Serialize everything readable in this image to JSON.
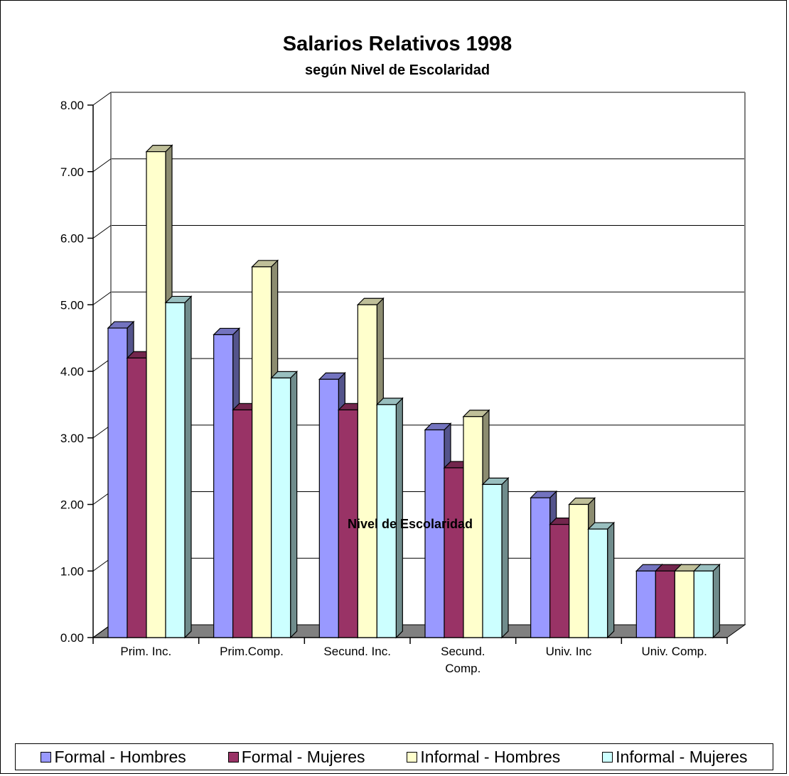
{
  "chart_data": {
    "type": "bar",
    "title": "Salarios Relativos 1998",
    "subtitle": "según Nivel de Escolaridad",
    "xlabel": "Nivel de Escolaridad",
    "ylabel": "",
    "ylim": [
      0,
      8
    ],
    "yticks": [
      "0.00",
      "1.00",
      "2.00",
      "3.00",
      "4.00",
      "5.00",
      "6.00",
      "7.00",
      "8.00"
    ],
    "categories": [
      [
        "Prim. Inc."
      ],
      [
        "Prim.Comp."
      ],
      [
        "Secund. Inc."
      ],
      [
        "Secund.",
        "Comp."
      ],
      [
        "Univ. Inc"
      ],
      [
        "Univ. Comp."
      ]
    ],
    "series": [
      {
        "name": "Formal - Hombres",
        "color": "#9999ff",
        "values": [
          4.65,
          4.55,
          3.88,
          3.12,
          2.1,
          1.0
        ]
      },
      {
        "name": "Formal - Mujeres",
        "color": "#993366",
        "values": [
          4.2,
          3.42,
          3.42,
          2.55,
          1.7,
          1.0
        ]
      },
      {
        "name": "Informal - Hombres",
        "color": "#ffffcc",
        "values": [
          7.3,
          5.57,
          5.0,
          3.32,
          2.0,
          1.0
        ]
      },
      {
        "name": "Informal - Mujeres",
        "color": "#ccffff",
        "values": [
          5.03,
          3.9,
          3.5,
          2.3,
          1.63,
          1.0
        ]
      }
    ],
    "grid": true,
    "legend_position": "bottom"
  }
}
